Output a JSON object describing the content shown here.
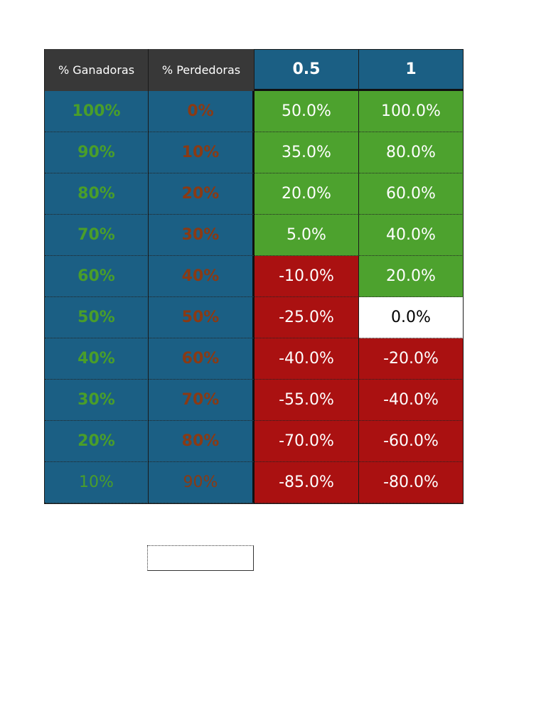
{
  "headers": {
    "winners": "% Ganadoras",
    "losers": "% Perdedoras",
    "col_a": "0.5",
    "col_b": "1"
  },
  "rows": [
    {
      "winners": "100%",
      "losers": "0%",
      "col_a": "50.0%",
      "col_b": "100.0%"
    },
    {
      "winners": "90%",
      "losers": "10%",
      "col_a": "35.0%",
      "col_b": "80.0%"
    },
    {
      "winners": "80%",
      "losers": "20%",
      "col_a": "20.0%",
      "col_b": "60.0%"
    },
    {
      "winners": "70%",
      "losers": "30%",
      "col_a": "5.0%",
      "col_b": "40.0%"
    },
    {
      "winners": "60%",
      "losers": "40%",
      "col_a": "-10.0%",
      "col_b": "20.0%"
    },
    {
      "winners": "50%",
      "losers": "50%",
      "col_a": "-25.0%",
      "col_b": "0.0%"
    },
    {
      "winners": "40%",
      "losers": "60%",
      "col_a": "-40.0%",
      "col_b": "-20.0%"
    },
    {
      "winners": "30%",
      "losers": "70%",
      "col_a": "-55.0%",
      "col_b": "-40.0%"
    },
    {
      "winners": "20%",
      "losers": "80%",
      "col_a": "-70.0%",
      "col_b": "-60.0%"
    },
    {
      "winners": "10%",
      "losers": "90%",
      "col_a": "-85.0%",
      "col_b": "-80.0%"
    }
  ],
  "colors": {
    "header_dark": "#383838",
    "header_blue": "#1b5f84",
    "positive": "#4da22e",
    "negative": "#aa1111",
    "neutral": "#ffffff",
    "winners_text": "#4a9e2a",
    "losers_text": "#8a3a14"
  }
}
